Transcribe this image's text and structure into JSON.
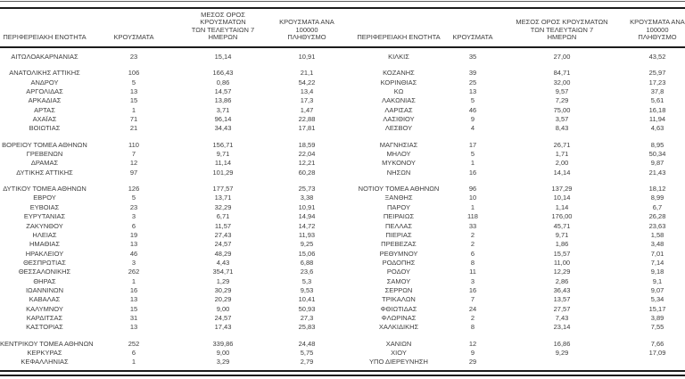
{
  "document": {
    "type": "regional-covid-cases-table",
    "text_color": "#3d3d3d",
    "rule_color": "#1c1c1c"
  },
  "table": {
    "columns": {
      "region": "ΠΕΡΙΦΕΡΕΙΑΚΗ ΕΝΟΤΗΤΑ",
      "cases": "ΚΡΟΥΣΜΑΤΑ",
      "avg7": "ΜΕΣΟΣ ΟΡΟΣ ΚΡΟΥΣΜΑΤΩΝ\nΤΩΝ ΤΕΛΕΥΤΑΙΩΝ 7\nΗΜΕΡΩΝ",
      "per100k": "ΚΡΟΥΣΜΑΤΑ ΑΝΑ 100000\nΠΛΗΘΥΣΜΟ"
    },
    "groups": [
      {
        "rows": [
          {
            "left": [
              "ΑΙΤΩΛΟΑΚΑΡΝΑΝΙΑΣ",
              "23",
              "15,14",
              "10,91"
            ],
            "right": [
              "ΚΙΛΚΙΣ",
              "35",
              "27,00",
              "43,52"
            ]
          }
        ]
      },
      {
        "rows": [
          {
            "left": [
              "ΑΝΑΤΟΛΙΚΗΣ ΑΤΤΙΚΗΣ",
              "106",
              "166,43",
              "21,1"
            ],
            "right": [
              "ΚΟΖΑΝΗΣ",
              "39",
              "84,71",
              "25,97"
            ]
          },
          {
            "left": [
              "ΑΝΔΡΟΥ",
              "5",
              "0,86",
              "54,22"
            ],
            "right": [
              "ΚΟΡΙΝΘΙΑΣ",
              "25",
              "32,00",
              "17,23"
            ]
          },
          {
            "left": [
              "ΑΡΓΟΛΙΔΑΣ",
              "13",
              "14,57",
              "13,4"
            ],
            "right": [
              "ΚΩ",
              "13",
              "9,57",
              "37,8"
            ]
          },
          {
            "left": [
              "ΑΡΚΑΔΙΑΣ",
              "15",
              "13,86",
              "17,3"
            ],
            "right": [
              "ΛΑΚΩΝΙΑΣ",
              "5",
              "7,29",
              "5,61"
            ]
          },
          {
            "left": [
              "ΑΡΤΑΣ",
              "1",
              "3,71",
              "1,47"
            ],
            "right": [
              "ΛΑΡΙΣΑΣ",
              "46",
              "75,00",
              "16,18"
            ]
          },
          {
            "left": [
              "ΑΧΑΪΑΣ",
              "71",
              "96,14",
              "22,88"
            ],
            "right": [
              "ΛΑΣΙΘΙΟΥ",
              "9",
              "3,57",
              "11,94"
            ]
          },
          {
            "left": [
              "ΒΟΙΩΤΙΑΣ",
              "21",
              "34,43",
              "17,81"
            ],
            "right": [
              "ΛΕΣΒΟΥ",
              "4",
              "8,43",
              "4,63"
            ]
          }
        ]
      },
      {
        "rows": [
          {
            "left": [
              "ΒΟΡΕΙΟΥ ΤΟΜΕΑ ΑΘΗΝΩΝ",
              "110",
              "156,71",
              "18,59"
            ],
            "right": [
              "ΜΑΓΝΗΣΙΑΣ",
              "17",
              "26,71",
              "8,95"
            ]
          },
          {
            "left": [
              "ΓΡΕΒΕΝΩΝ",
              "7",
              "9,71",
              "22,04"
            ],
            "right": [
              "ΜΗΛΟΥ",
              "5",
              "1,71",
              "50,34"
            ]
          },
          {
            "left": [
              "ΔΡΑΜΑΣ",
              "12",
              "11,14",
              "12,21"
            ],
            "right": [
              "ΜΥΚΟΝΟΥ",
              "1",
              "2,00",
              "9,87"
            ]
          },
          {
            "left": [
              "ΔΥΤΙΚΗΣ ΑΤΤΙΚΗΣ",
              "97",
              "101,29",
              "60,28"
            ],
            "right": [
              "ΝΗΣΩΝ",
              "16",
              "14,14",
              "21,43"
            ]
          }
        ]
      },
      {
        "rows": [
          {
            "left": [
              "ΔΥΤΙΚΟΥ ΤΟΜΕΑ ΑΘΗΝΩΝ",
              "126",
              "177,57",
              "25,73"
            ],
            "right": [
              "ΝΟΤΙΟΥ ΤΟΜΕΑ ΑΘΗΝΩΝ",
              "96",
              "137,29",
              "18,12"
            ]
          },
          {
            "left": [
              "ΕΒΡΟΥ",
              "5",
              "13,71",
              "3,38"
            ],
            "right": [
              "ΞΑΝΘΗΣ",
              "10",
              "10,14",
              "8,99"
            ]
          },
          {
            "left": [
              "ΕΥΒΟΙΑΣ",
              "23",
              "32,29",
              "10,91"
            ],
            "right": [
              "ΠΑΡΟΥ",
              "1",
              "1,14",
              "6,7"
            ]
          },
          {
            "left": [
              "ΕΥΡΥΤΑΝΙΑΣ",
              "3",
              "6,71",
              "14,94"
            ],
            "right": [
              "ΠΕΙΡΑΙΩΣ",
              "118",
              "176,00",
              "26,28"
            ]
          },
          {
            "left": [
              "ΖΑΚΥΝΘΟΥ",
              "6",
              "11,57",
              "14,72"
            ],
            "right": [
              "ΠΕΛΛΑΣ",
              "33",
              "45,71",
              "23,63"
            ]
          },
          {
            "left": [
              "ΗΛΕΙΑΣ",
              "19",
              "27,43",
              "11,93"
            ],
            "right": [
              "ΠΙΕΡΙΑΣ",
              "2",
              "9,71",
              "1,58"
            ]
          },
          {
            "left": [
              "ΗΜΑΘΙΑΣ",
              "13",
              "24,57",
              "9,25"
            ],
            "right": [
              "ΠΡΕΒΕΖΑΣ",
              "2",
              "1,86",
              "3,48"
            ]
          },
          {
            "left": [
              "ΗΡΑΚΛΕΙΟΥ",
              "46",
              "48,29",
              "15,06"
            ],
            "right": [
              "ΡΕΘΥΜΝΟΥ",
              "6",
              "15,57",
              "7,01"
            ]
          },
          {
            "left": [
              "ΘΕΣΠΡΩΤΙΑΣ",
              "3",
              "4,43",
              "6,88"
            ],
            "right": [
              "ΡΟΔΟΠΗΣ",
              "8",
              "11,00",
              "7,14"
            ]
          },
          {
            "left": [
              "ΘΕΣΣΑΛΟΝΙΚΗΣ",
              "262",
              "354,71",
              "23,6"
            ],
            "right": [
              "ΡΟΔΟΥ",
              "11",
              "12,29",
              "9,18"
            ]
          },
          {
            "left": [
              "ΘΗΡΑΣ",
              "1",
              "1,29",
              "5,3"
            ],
            "right": [
              "ΣΑΜΟΥ",
              "3",
              "2,86",
              "9,1"
            ]
          },
          {
            "left": [
              "ΙΩΑΝΝΙΝΩΝ",
              "16",
              "30,29",
              "9,53"
            ],
            "right": [
              "ΣΕΡΡΩΝ",
              "16",
              "36,43",
              "9,07"
            ]
          },
          {
            "left": [
              "ΚΑΒΑΛΑΣ",
              "13",
              "20,29",
              "10,41"
            ],
            "right": [
              "ΤΡΙΚΑΛΩΝ",
              "7",
              "13,57",
              "5,34"
            ]
          },
          {
            "left": [
              "ΚΑΛΥΜΝΟΥ",
              "15",
              "9,00",
              "50,93"
            ],
            "right": [
              "ΦΘΙΩΤΙΔΑΣ",
              "24",
              "27,57",
              "15,17"
            ]
          },
          {
            "left": [
              "ΚΑΡΔΙΤΣΑΣ",
              "31",
              "24,57",
              "27,3"
            ],
            "right": [
              "ΦΛΩΡΙΝΑΣ",
              "2",
              "7,43",
              "3,89"
            ]
          },
          {
            "left": [
              "ΚΑΣΤΟΡΙΑΣ",
              "13",
              "17,43",
              "25,83"
            ],
            "right": [
              "ΧΑΛΚΙΔΙΚΗΣ",
              "8",
              "23,14",
              "7,55"
            ]
          }
        ]
      },
      {
        "rows": [
          {
            "left": [
              "ΚΕΝΤΡΙΚΟΥ ΤΟΜΕΑ ΑΘΗΝΩΝ",
              "252",
              "339,86",
              "24,48"
            ],
            "right": [
              "ΧΑΝΙΩΝ",
              "12",
              "16,86",
              "7,66"
            ]
          },
          {
            "left": [
              "ΚΕΡΚΥΡΑΣ",
              "6",
              "9,00",
              "5,75"
            ],
            "right": [
              "ΧΙΟΥ",
              "9",
              "9,29",
              "17,09"
            ]
          },
          {
            "left": [
              "ΚΕΦΑΛΛΗΝΙΑΣ",
              "1",
              "3,29",
              "2,79"
            ],
            "right": [
              "ΥΠΟ ΔΙΕΡΕΥΝΗΣΗ",
              "29",
              "",
              ""
            ]
          }
        ]
      }
    ]
  }
}
